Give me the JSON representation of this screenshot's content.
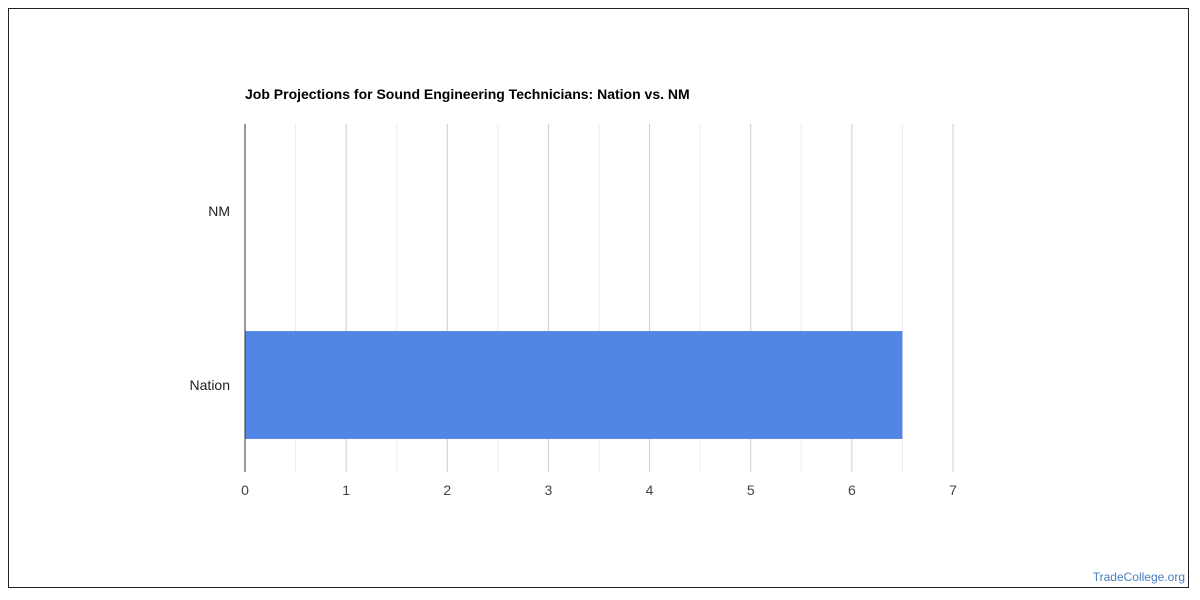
{
  "colors": {
    "bar": "#5386e4",
    "grid_major": "#cccccc",
    "grid_minor": "#ebebeb",
    "axis": "#333333",
    "tick_text": "#444444",
    "watermark": "#4a7fc1"
  },
  "chart_data": {
    "type": "bar",
    "orientation": "horizontal",
    "title": "Job Projections for Sound Engineering Technicians: Nation vs. NM",
    "categories": [
      "NM",
      "Nation"
    ],
    "values": [
      0,
      6.5
    ],
    "xlabel": "",
    "ylabel": "",
    "xlim": [
      0,
      7
    ],
    "xticks": [
      "0",
      "1",
      "2",
      "3",
      "4",
      "5",
      "6",
      "7"
    ],
    "grid": true,
    "legend": "none"
  },
  "footer": {
    "watermark": "TradeCollege.org"
  }
}
